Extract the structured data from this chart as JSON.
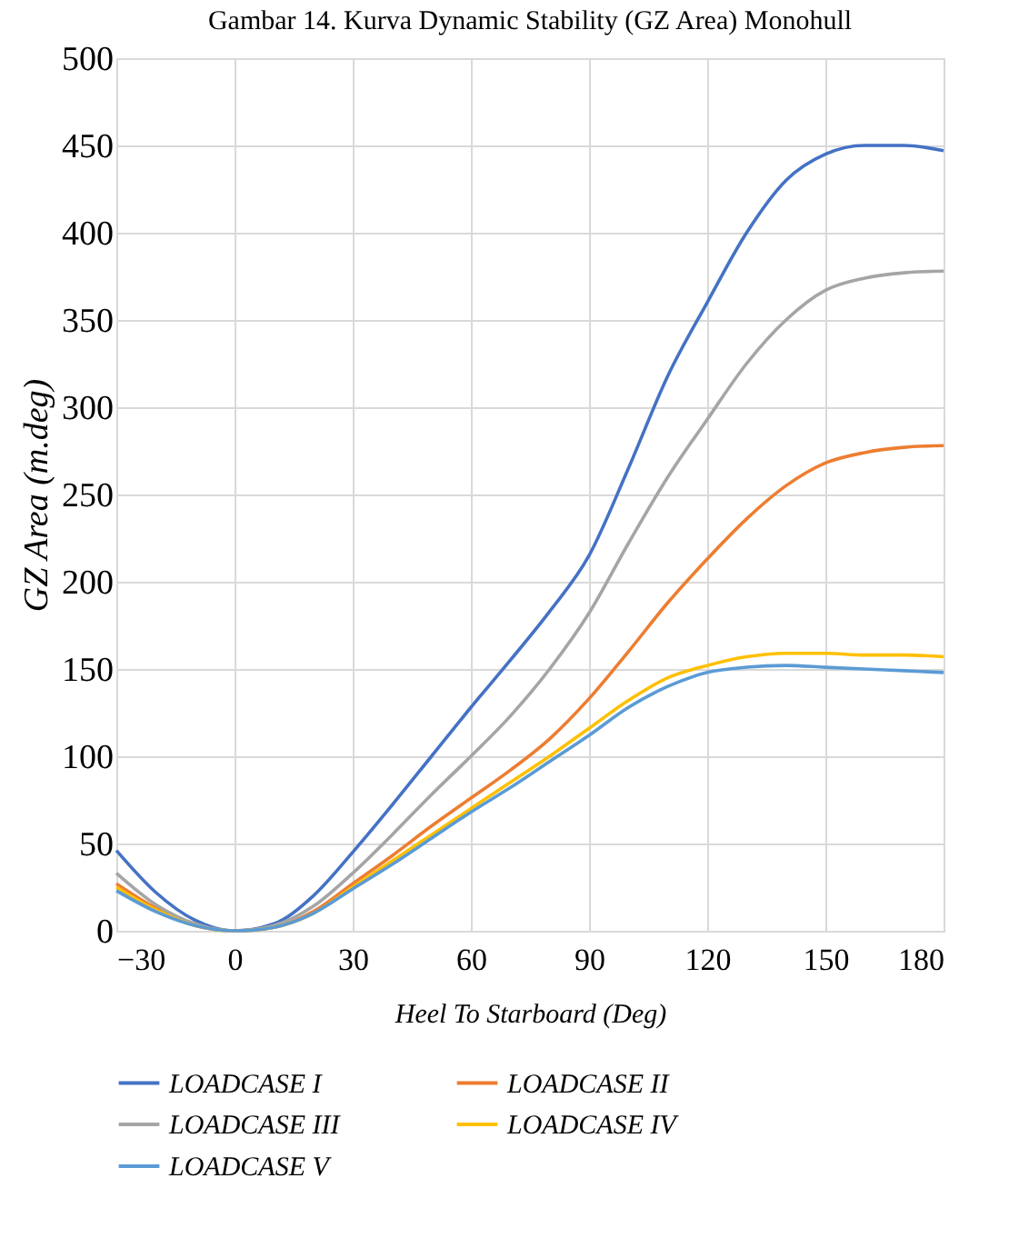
{
  "chart_data": {
    "type": "line",
    "title": "Gambar 14. Kurva Dynamic Stability (GZ Area) Monohull",
    "xlabel": "Heel To Starboard (Deg)",
    "ylabel": "GZ Area (m.deg)",
    "x": [
      -30,
      -20,
      -10,
      0,
      10,
      20,
      30,
      40,
      50,
      60,
      70,
      80,
      90,
      100,
      110,
      120,
      130,
      140,
      150,
      160,
      170,
      180
    ],
    "series": [
      {
        "name": "LOADCASE I",
        "color": "#4472c4",
        "values": [
          46,
          22,
          6,
          0,
          4,
          20,
          45,
          72,
          100,
          128,
          155,
          183,
          215,
          265,
          318,
          360,
          400,
          430,
          445,
          450,
          450,
          447
        ]
      },
      {
        "name": "LOADCASE II",
        "color": "#ed7d31",
        "values": [
          27,
          13,
          3,
          0,
          2,
          11,
          27,
          43,
          60,
          76,
          92,
          110,
          133,
          160,
          188,
          213,
          236,
          255,
          268,
          274,
          277,
          278
        ]
      },
      {
        "name": "LOADCASE III",
        "color": "#a5a5a5",
        "values": [
          33,
          15,
          4,
          0,
          3,
          14,
          33,
          55,
          78,
          100,
          123,
          150,
          182,
          222,
          260,
          293,
          325,
          350,
          367,
          374,
          377,
          378
        ]
      },
      {
        "name": "LOADCASE IV",
        "color": "#ffc000",
        "values": [
          25,
          12,
          3,
          0,
          2,
          10,
          25,
          40,
          55,
          70,
          85,
          100,
          116,
          132,
          145,
          152,
          157,
          159,
          159,
          158,
          158,
          157
        ]
      },
      {
        "name": "LOADCASE V",
        "color": "#5b9bd5",
        "values": [
          23,
          11,
          3,
          0,
          2,
          10,
          24,
          38,
          53,
          68,
          82,
          97,
          112,
          128,
          140,
          148,
          151,
          152,
          151,
          150,
          149,
          148
        ]
      }
    ],
    "xlim": [
      -30,
      180
    ],
    "xticks": [
      -30,
      0,
      30,
      60,
      90,
      120,
      150,
      180
    ],
    "ylim": [
      0,
      500
    ],
    "yticks": [
      0,
      50,
      100,
      150,
      200,
      250,
      300,
      350,
      400,
      450,
      500
    ],
    "grid": true,
    "legend": "bottom",
    "marker": "none",
    "line_style": "solid"
  }
}
